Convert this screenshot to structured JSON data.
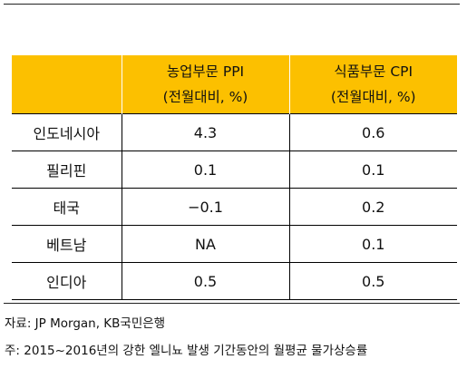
{
  "table": {
    "headers": [
      {
        "line1": "",
        "line2": ""
      },
      {
        "line1": "농업부문 PPI",
        "line2": "(전월대비, %)"
      },
      {
        "line1": "식품부문 CPI",
        "line2": "(전월대비, %)"
      }
    ],
    "rows": [
      {
        "country": "인도네시아",
        "ppi": "4.3",
        "cpi": "0.6"
      },
      {
        "country": "필리핀",
        "ppi": "0.1",
        "cpi": "0.1"
      },
      {
        "country": "태국",
        "ppi": "−0.1",
        "cpi": "0.2"
      },
      {
        "country": "베트남",
        "ppi": "NA",
        "cpi": "0.1"
      },
      {
        "country": "인디아",
        "ppi": "0.5",
        "cpi": "0.5"
      }
    ]
  },
  "footer": {
    "source": "자료: JP Morgan, KB국민은행",
    "note": "주: 2015~2016년의 강한 엘니뇨 발생 기간동안의 월평균 물가상승률"
  },
  "colors": {
    "header_bg": "#fcc000"
  }
}
